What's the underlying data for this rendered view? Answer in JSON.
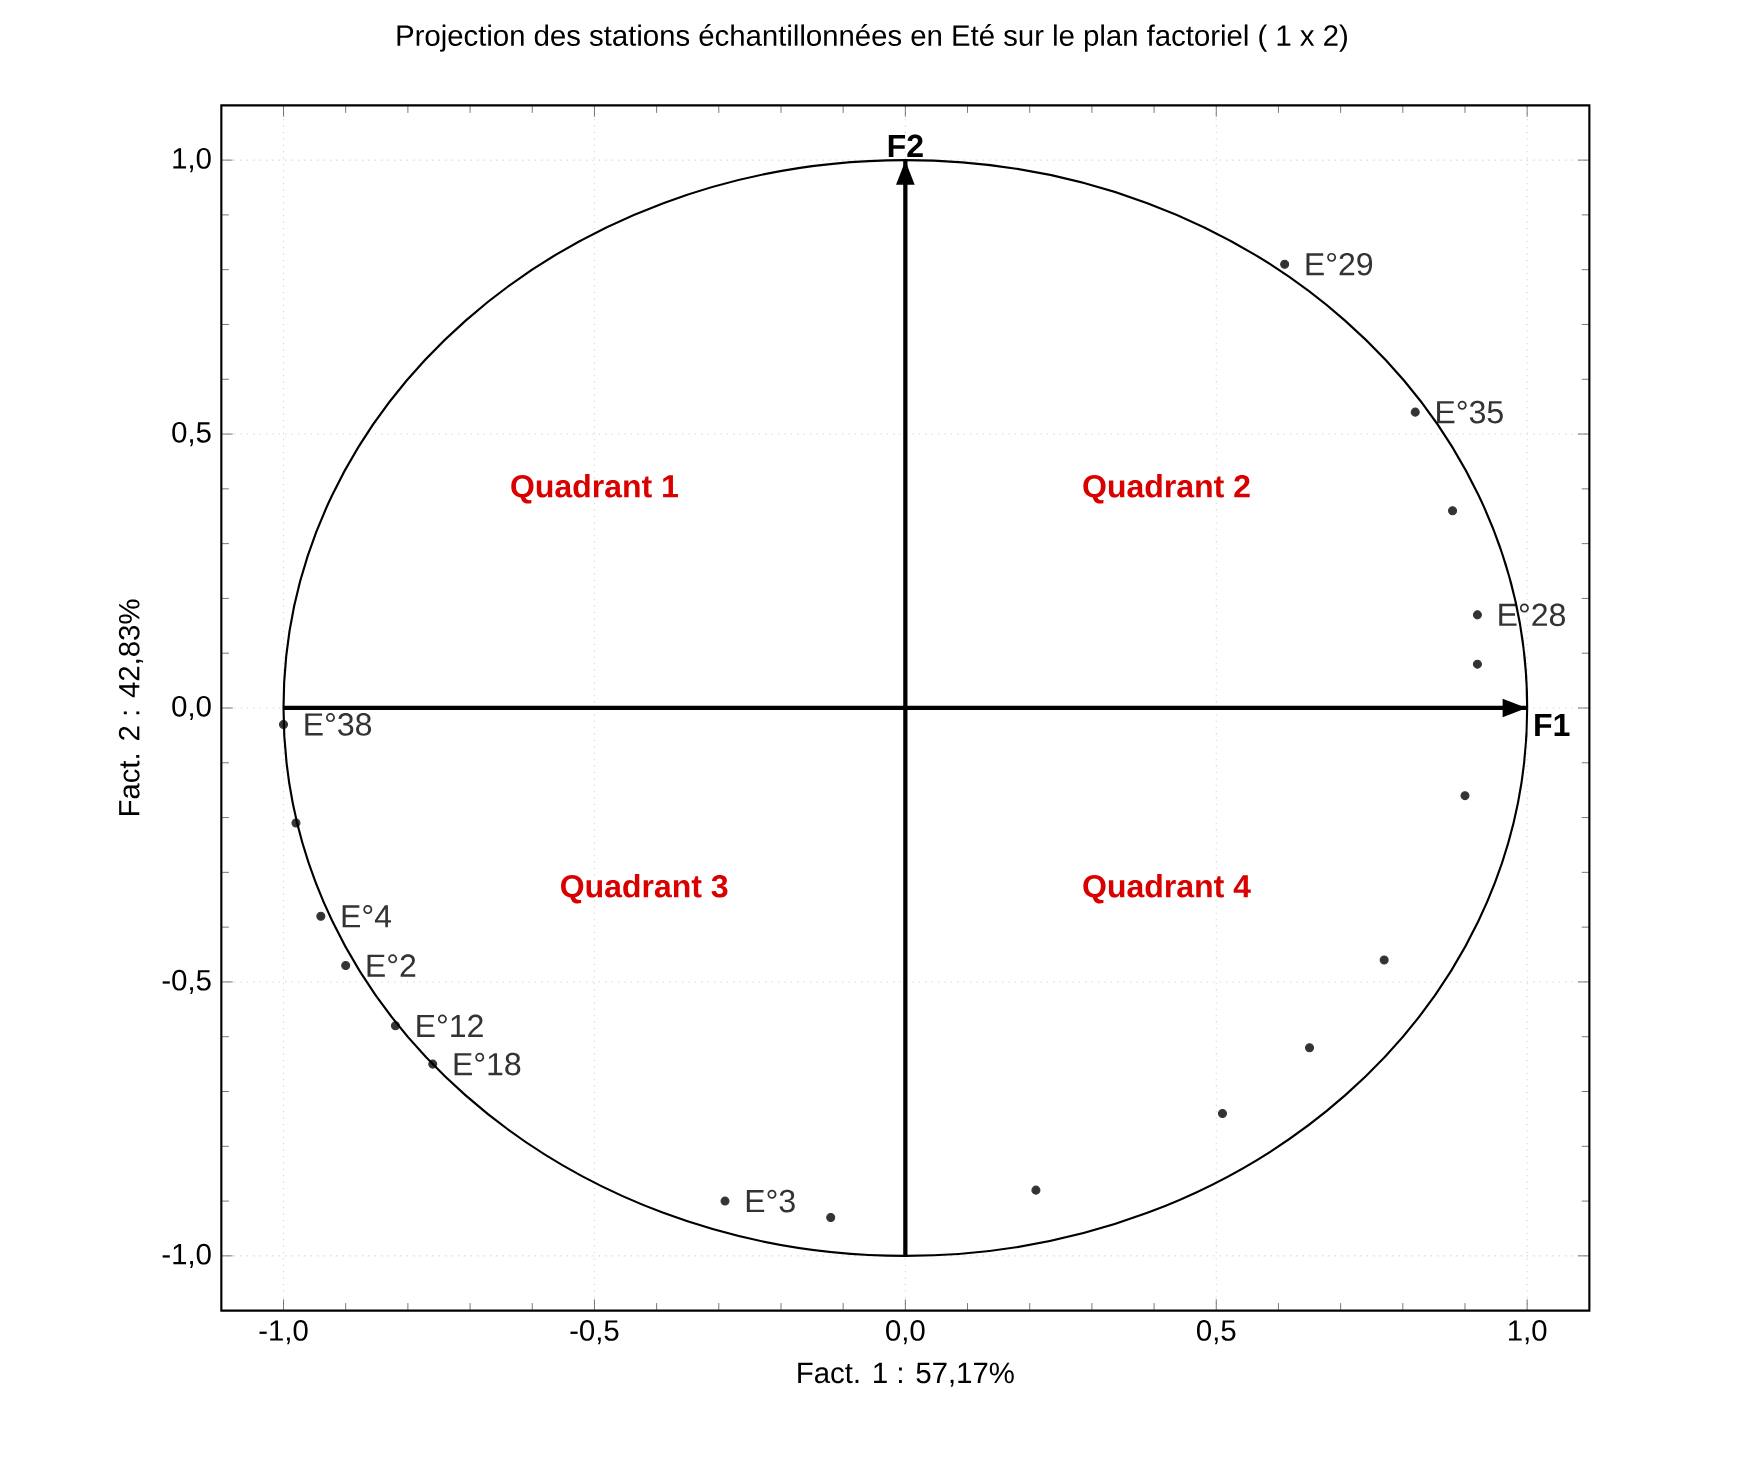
{
  "chart_data": {
    "type": "scatter",
    "title": "Projection des stations échantillonnées en Eté sur le plan factoriel (  1 x   2)",
    "xlabel": "Fact. 1   : 57,17%",
    "ylabel": "Fact. 2   : 42,83%",
    "xlim": [
      -1.1,
      1.1
    ],
    "ylim": [
      -1.1,
      1.1
    ],
    "xticks": [
      {
        "value": -1,
        "label": "-1,0"
      },
      {
        "value": -0.5,
        "label": "-0,5"
      },
      {
        "value": 0,
        "label": "0,0"
      },
      {
        "value": 0.5,
        "label": "0,5"
      },
      {
        "value": 1,
        "label": "1,0"
      }
    ],
    "yticks": [
      {
        "value": -1,
        "label": "-1,0"
      },
      {
        "value": -0.5,
        "label": "-0,5"
      },
      {
        "value": 0,
        "label": "0,0"
      },
      {
        "value": 0.5,
        "label": "0,5"
      },
      {
        "value": 1,
        "label": "1,0"
      }
    ],
    "grid": true,
    "marker": "circle",
    "series": [
      {
        "color": "#333333",
        "x": [
          0.61,
          0.82,
          0.92,
          -1.0,
          -0.94,
          -0.9,
          -0.82,
          -0.76,
          -0.29,
          0.88,
          0.92,
          -0.98,
          -0.12,
          0.9,
          0.77,
          0.65,
          0.51,
          0.21
        ],
        "values": [
          0.81,
          0.54,
          0.17,
          -0.03,
          -0.38,
          -0.47,
          -0.58,
          -0.65,
          -0.9,
          0.36,
          0.08,
          -0.21,
          -0.93,
          -0.16,
          -0.46,
          -0.62,
          -0.74,
          -0.88
        ]
      }
    ],
    "ref_lines": [
      {
        "axis": "y",
        "value": 0,
        "label": "F1"
      },
      {
        "axis": "x",
        "value": 0,
        "label": "F2"
      }
    ],
    "annotations": [
      {
        "text": "E°29",
        "x": 0.61,
        "y": 0.81
      },
      {
        "text": "E°35",
        "x": 0.82,
        "y": 0.54
      },
      {
        "text": "E°28",
        "x": 0.92,
        "y": 0.17
      },
      {
        "text": "E°38",
        "x": -1.0,
        "y": -0.03
      },
      {
        "text": "E°4",
        "x": -0.94,
        "y": -0.38
      },
      {
        "text": "E°2",
        "x": -0.9,
        "y": -0.47
      },
      {
        "text": "E°12",
        "x": -0.82,
        "y": -0.58
      },
      {
        "text": "E°18",
        "x": -0.76,
        "y": -0.65
      },
      {
        "text": "E°3",
        "x": -0.29,
        "y": -0.9
      },
      "Quadrant 1",
      "Quadrant 2",
      "Quadrant 3",
      "Quadrant 4"
    ]
  }
}
